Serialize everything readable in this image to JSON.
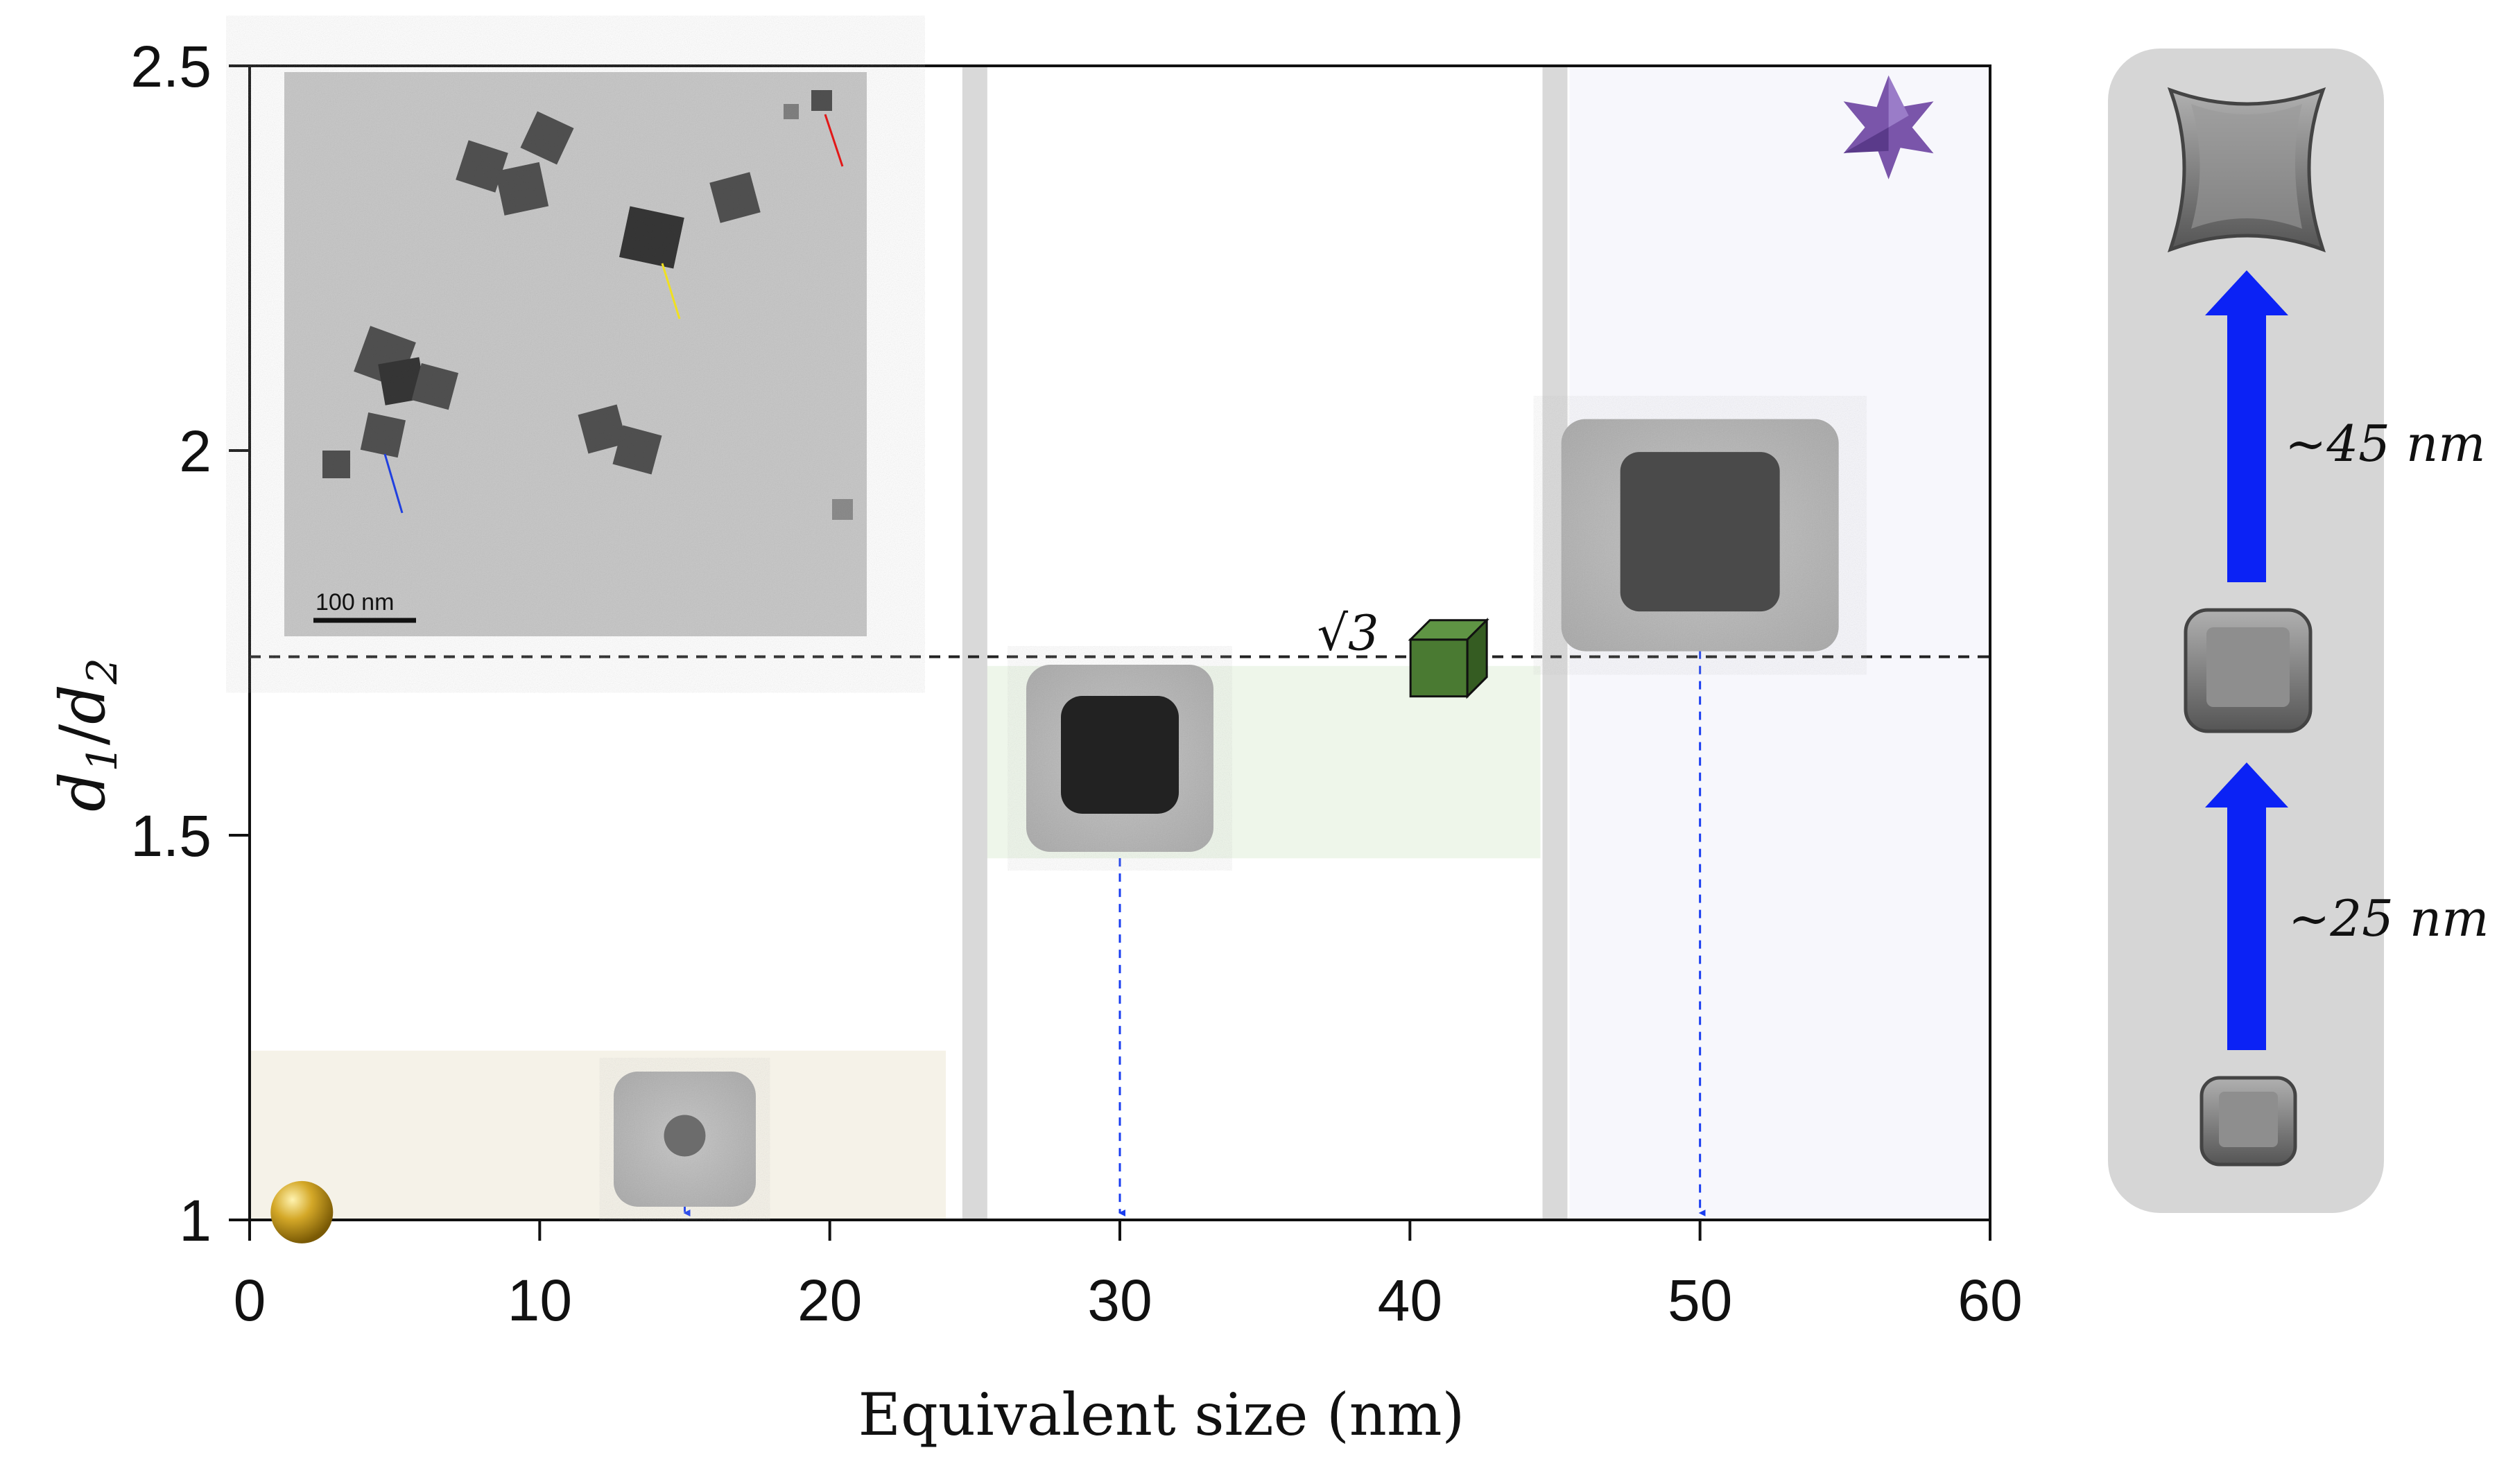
{
  "chart_data": {
    "type": "scatter",
    "xlabel": "Equivalent size (nm)",
    "ylabel": "d1/d2",
    "xlim": [
      0,
      60
    ],
    "ylim": [
      1,
      2.5
    ],
    "xticks": [
      0,
      10,
      20,
      30,
      40,
      50,
      60
    ],
    "yticks": [
      1,
      1.5,
      2,
      2.5
    ],
    "xtick_labels": [
      "0",
      "10",
      "20",
      "30",
      "40",
      "50",
      "60"
    ],
    "ytick_labels": [
      "1",
      "1.5",
      "2",
      "2.5"
    ],
    "grid": false,
    "reference_line": {
      "y": 1.732,
      "label": "√3",
      "style": "dashed"
    },
    "region_dividers_x": [
      25,
      45
    ],
    "regions": [
      {
        "x": [
          0,
          24
        ],
        "y": [
          1,
          1.22
        ],
        "color": "#f5f2e8"
      },
      {
        "x": [
          25,
          44.5
        ],
        "y": [
          1.47,
          1.72
        ],
        "color": "#eef6ea"
      },
      {
        "x": [
          45.5,
          60
        ],
        "y": [
          1,
          2.5
        ],
        "color": "#f7f7fc"
      }
    ],
    "points": [
      {
        "shape": "sphere",
        "x": 1.8,
        "y": 1.01,
        "color": "#c9a227"
      },
      {
        "shape": "cube",
        "x": 41,
        "y": 1.73,
        "color": "#4a7a32"
      },
      {
        "shape": "star",
        "x": 56.5,
        "y": 2.42,
        "color": "#7a55aa"
      }
    ],
    "tem_markers_x": [
      15,
      30,
      50
    ]
  },
  "inset": {
    "scale_bar": "100 nm"
  },
  "shape_panel": {
    "arrow_labels": [
      "~45 nm",
      "~25 nm"
    ],
    "arrow_color": "#0b22f5",
    "panel_color": "#d6d6d6"
  }
}
